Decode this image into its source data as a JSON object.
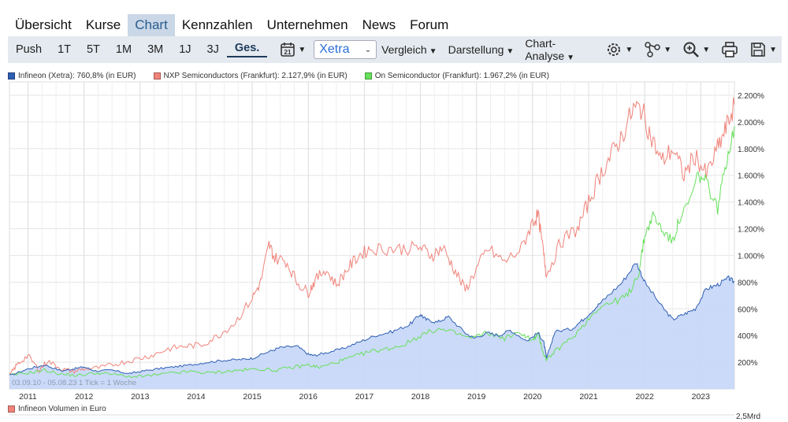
{
  "nav": {
    "items": [
      "Übersicht",
      "Kurse",
      "Chart",
      "Kennzahlen",
      "Unternehmen",
      "News",
      "Forum"
    ],
    "active": 2
  },
  "toolbar": {
    "ranges": [
      "Push",
      "1T",
      "5T",
      "1M",
      "3M",
      "1J",
      "3J",
      "Ges."
    ],
    "active_range": 7,
    "calendar_icon": "calendar-icon",
    "exchange_select": "Xetra",
    "menus": [
      "Vergleich",
      "Darstellung",
      "Chart-Analyse"
    ],
    "icons": [
      "gear-icon",
      "network-icon",
      "zoom-icon",
      "print-icon",
      "save-icon"
    ]
  },
  "chart_data": {
    "type": "line",
    "legend": [
      {
        "label": "Infineon (Xetra): 760,8% (in EUR)",
        "color": "#2f5fb3"
      },
      {
        "label": "NXP Semiconductors (Frankfurt): 2.127,9% (in EUR)",
        "color": "#f0837a"
      },
      {
        "label": "On Semiconductor (Frankfurt): 1.967,2% (in EUR)",
        "color": "#66e05a"
      }
    ],
    "x_ticks": [
      "2011",
      "2012",
      "2013",
      "2014",
      "2015",
      "2016",
      "2017",
      "2018",
      "2019",
      "2020",
      "2021",
      "2022",
      "2023"
    ],
    "y_ticks": [
      "200%",
      "400%",
      "600%",
      "800%",
      "1.000%",
      "1.200%",
      "1.400%",
      "1.600%",
      "1.800%",
      "2.000%",
      "2.200%"
    ],
    "xlim": [
      2010.67,
      2023.6
    ],
    "ylim": [
      0,
      2300
    ],
    "info_text": "03.09.10 - 05.08.23   1 Tick = 1 Woche",
    "volume_legend": "Infineon Volumen in Euro",
    "volume_tick": "2,5Mrd",
    "series": [
      {
        "name": "Infineon (Xetra)",
        "color": "#2f5fb3",
        "fill": "#c5d6f7",
        "x": [
          2010.67,
          2011.0,
          2011.3,
          2011.6,
          2011.8,
          2012.0,
          2012.2,
          2012.5,
          2012.8,
          2013.0,
          2013.3,
          2013.6,
          2013.9,
          2014.2,
          2014.5,
          2014.8,
          2015.0,
          2015.3,
          2015.5,
          2015.8,
          2016.0,
          2016.1,
          2016.3,
          2016.6,
          2016.9,
          2017.2,
          2017.5,
          2017.8,
          2018.0,
          2018.1,
          2018.3,
          2018.5,
          2018.8,
          2018.95,
          2019.2,
          2019.4,
          2019.6,
          2019.9,
          2020.1,
          2020.2,
          2020.25,
          2020.4,
          2020.7,
          2020.9,
          2021.1,
          2021.3,
          2021.6,
          2021.85,
          2022.0,
          2022.3,
          2022.5,
          2022.7,
          2022.9,
          2023.1,
          2023.3,
          2023.5,
          2023.6
        ],
        "values": [
          100,
          150,
          180,
          135,
          150,
          165,
          135,
          140,
          115,
          130,
          150,
          165,
          180,
          200,
          215,
          220,
          230,
          280,
          310,
          320,
          260,
          250,
          270,
          300,
          350,
          400,
          430,
          480,
          560,
          520,
          500,
          540,
          420,
          380,
          420,
          400,
          440,
          360,
          420,
          350,
          230,
          430,
          450,
          520,
          600,
          680,
          800,
          950,
          800,
          620,
          520,
          560,
          600,
          750,
          780,
          830,
          800
        ]
      },
      {
        "name": "NXP Semiconductors (Frankfurt)",
        "color": "#f0837a",
        "x": [
          2010.67,
          2010.8,
          2011.0,
          2011.2,
          2011.35,
          2011.6,
          2011.8,
          2012.0,
          2012.3,
          2012.6,
          2012.9,
          2013.2,
          2013.5,
          2013.8,
          2014.1,
          2014.4,
          2014.7,
          2015.0,
          2015.15,
          2015.3,
          2015.4,
          2015.6,
          2015.8,
          2016.0,
          2016.1,
          2016.3,
          2016.5,
          2016.7,
          2016.9,
          2017.1,
          2017.4,
          2017.7,
          2018.0,
          2018.2,
          2018.4,
          2018.6,
          2018.8,
          2019.0,
          2019.2,
          2019.5,
          2019.8,
          2020.0,
          2020.1,
          2020.2,
          2020.25,
          2020.5,
          2020.8,
          2021.0,
          2021.2,
          2021.4,
          2021.6,
          2021.8,
          2021.95,
          2022.1,
          2022.3,
          2022.5,
          2022.7,
          2022.9,
          2023.1,
          2023.3,
          2023.45,
          2023.6
        ],
        "values": [
          100,
          180,
          250,
          140,
          210,
          150,
          130,
          150,
          160,
          190,
          220,
          250,
          300,
          320,
          330,
          400,
          500,
          680,
          800,
          1080,
          980,
          960,
          800,
          720,
          800,
          900,
          780,
          900,
          1000,
          1050,
          1050,
          1050,
          1060,
          1000,
          1060,
          900,
          740,
          900,
          1050,
          950,
          1050,
          1250,
          1300,
          1000,
          850,
          1100,
          1200,
          1400,
          1600,
          1750,
          1900,
          2100,
          2100,
          1900,
          1700,
          1800,
          1600,
          1750,
          1600,
          1800,
          1950,
          2130
        ]
      },
      {
        "name": "On Semiconductor (Frankfurt)",
        "color": "#66e05a",
        "x": [
          2010.67,
          2011.0,
          2011.3,
          2011.6,
          2011.9,
          2012.2,
          2012.5,
          2012.9,
          2013.2,
          2013.6,
          2013.9,
          2014.2,
          2014.5,
          2014.8,
          2015.1,
          2015.4,
          2015.7,
          2016.0,
          2016.2,
          2016.5,
          2016.8,
          2017.1,
          2017.4,
          2017.7,
          2018.0,
          2018.3,
          2018.6,
          2018.9,
          2019.2,
          2019.5,
          2019.8,
          2020.0,
          2020.1,
          2020.2,
          2020.25,
          2020.45,
          2020.7,
          2020.95,
          2021.2,
          2021.45,
          2021.7,
          2021.9,
          2022.0,
          2022.15,
          2022.3,
          2022.5,
          2022.6,
          2022.8,
          2022.95,
          2023.1,
          2023.3,
          2023.45,
          2023.6
        ],
        "values": [
          100,
          120,
          140,
          110,
          100,
          120,
          110,
          90,
          100,
          120,
          130,
          120,
          130,
          140,
          150,
          140,
          160,
          180,
          160,
          200,
          240,
          280,
          300,
          330,
          400,
          450,
          420,
          380,
          420,
          380,
          420,
          360,
          410,
          260,
          220,
          300,
          380,
          500,
          620,
          650,
          700,
          880,
          1150,
          1300,
          1200,
          1100,
          1250,
          1400,
          1600,
          1550,
          1350,
          1700,
          1970
        ]
      }
    ]
  }
}
